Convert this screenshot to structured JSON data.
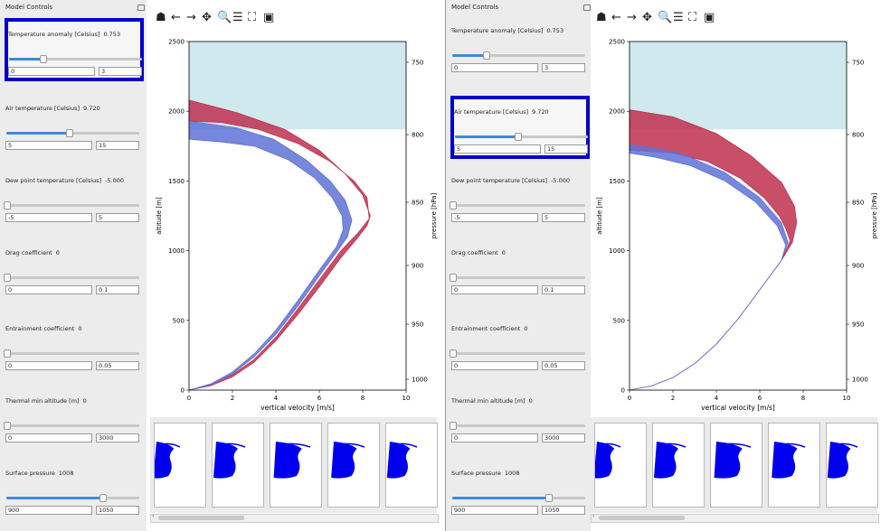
{
  "panes": [
    {
      "title": "Model Controls",
      "controls": [
        {
          "label": "Temperature anomaly [Celsius]",
          "value": "0.753",
          "min": "0",
          "max": "3",
          "frac": 0.251
        },
        {
          "label": "Air temperature [Celsius]",
          "value": "9.720",
          "min": "5",
          "max": "15",
          "frac": 0.472
        },
        {
          "label": "Dew point temperature [Celsius]",
          "value": "-5.000",
          "min": "-5",
          "max": "5",
          "frac": 0.0
        },
        {
          "label": "Drag coefficient",
          "value": "0",
          "min": "0",
          "max": "0.1",
          "frac": 0.0
        },
        {
          "label": "Entrainment coefficient",
          "value": "0",
          "min": "0",
          "max": "0.05",
          "frac": 0.0
        },
        {
          "label": "Thermal min altitude [m]",
          "value": "0",
          "min": "0",
          "max": "3000",
          "frac": 0.0
        },
        {
          "label": "Surface pressure",
          "value": "1008",
          "min": "900",
          "max": "1050",
          "frac": 0.72
        }
      ],
      "selected": 0
    },
    {
      "title": "Model Controls",
      "controls": [
        {
          "label": "Temperature anomaly [Celsius]",
          "value": "0.753",
          "min": "0",
          "max": "3",
          "frac": 0.251
        },
        {
          "label": "Air temperature [Celsius]",
          "value": "9.720",
          "min": "5",
          "max": "15",
          "frac": 0.472
        },
        {
          "label": "Dew point temperature [Celsius]",
          "value": "-5.000",
          "min": "-5",
          "max": "5",
          "frac": 0.0
        },
        {
          "label": "Drag coefficient",
          "value": "0",
          "min": "0",
          "max": "0.1",
          "frac": 0.0
        },
        {
          "label": "Entrainment coefficient",
          "value": "0",
          "min": "0",
          "max": "0.05",
          "frac": 0.0
        },
        {
          "label": "Thermal min altitude [m]",
          "value": "0",
          "min": "0",
          "max": "3000",
          "frac": 0.0
        },
        {
          "label": "Surface pressure",
          "value": "1008",
          "min": "900",
          "max": "1050",
          "frac": 0.72
        }
      ],
      "selected": 1
    }
  ],
  "toolbar": [
    {
      "name": "home-icon",
      "glyph": "☗"
    },
    {
      "name": "back-icon",
      "glyph": "←"
    },
    {
      "name": "forward-icon",
      "glyph": "→"
    },
    {
      "name": "pan-icon",
      "glyph": "✥"
    },
    {
      "name": "zoom-icon",
      "glyph": "🔍"
    },
    {
      "name": "configure-subplots-icon",
      "glyph": "☰"
    },
    {
      "name": "edit-axis-icon",
      "glyph": "⛶"
    },
    {
      "name": "save-icon",
      "glyph": "▣"
    }
  ],
  "chart_data": [
    {
      "type": "area",
      "xlabel": "vertical velocity [m/s]",
      "ylabel": "altitude [m]",
      "y2label": "pressure [hPa]",
      "xlim": [
        0,
        10
      ],
      "ylim": [
        0,
        2500
      ],
      "xticks": [
        "0",
        "2",
        "4",
        "6",
        "8",
        "10"
      ],
      "yticks": [
        "0",
        "500",
        "1000",
        "1500",
        "2000",
        "2500"
      ],
      "y2ticks": [
        "750",
        "800",
        "850",
        "900",
        "950",
        "1000"
      ],
      "cloud_base": 1870,
      "colors": {
        "red": "#c0304f",
        "blue": "#5f72d6",
        "sky": "#cfe9ef"
      },
      "series": [
        {
          "color": "red",
          "outer": [
            [
              0,
              0
            ],
            [
              1,
              40
            ],
            [
              2,
              110
            ],
            [
              3,
              220
            ],
            [
              4,
              380
            ],
            [
              5,
              580
            ],
            [
              6,
              790
            ],
            [
              7,
              1000
            ],
            [
              7.8,
              1130
            ],
            [
              8.3,
              1230
            ],
            [
              8.2,
              1380
            ],
            [
              7.6,
              1500
            ],
            [
              6.5,
              1640
            ],
            [
              5,
              1770
            ],
            [
              3.2,
              1870
            ],
            [
              1.5,
              1920
            ],
            [
              0,
              1930
            ]
          ],
          "inner": [
            [
              0,
              0
            ],
            [
              1,
              32
            ],
            [
              2,
              95
            ],
            [
              3,
              200
            ],
            [
              4,
              355
            ],
            [
              5,
              540
            ],
            [
              6,
              740
            ],
            [
              7,
              950
            ],
            [
              7.7,
              1080
            ],
            [
              8.2,
              1180
            ],
            [
              8.35,
              1250
            ],
            [
              8.0,
              1400
            ],
            [
              7.2,
              1550
            ],
            [
              6,
              1720
            ],
            [
              4.4,
              1870
            ],
            [
              2.2,
              1990
            ],
            [
              0,
              2080
            ]
          ]
        },
        {
          "color": "blue",
          "outer": [
            [
              0,
              0
            ],
            [
              1,
              45
            ],
            [
              2,
              130
            ],
            [
              3,
              260
            ],
            [
              4,
              430
            ],
            [
              5,
              640
            ],
            [
              6,
              860
            ],
            [
              6.8,
              1030
            ],
            [
              7.1,
              1150
            ],
            [
              7.05,
              1250
            ],
            [
              6.6,
              1380
            ],
            [
              5.8,
              1520
            ],
            [
              4.6,
              1650
            ],
            [
              3,
              1750
            ],
            [
              1.5,
              1780
            ],
            [
              0,
              1800
            ]
          ],
          "inner": [
            [
              0,
              0
            ],
            [
              1,
              38
            ],
            [
              2,
              115
            ],
            [
              3,
              240
            ],
            [
              4,
              400
            ],
            [
              5,
              600
            ],
            [
              6,
              820
            ],
            [
              6.8,
              990
            ],
            [
              7.3,
              1100
            ],
            [
              7.5,
              1220
            ],
            [
              7.2,
              1360
            ],
            [
              6.5,
              1500
            ],
            [
              5.4,
              1650
            ],
            [
              3.9,
              1800
            ],
            [
              2.2,
              1880
            ],
            [
              0,
              1930
            ]
          ]
        }
      ]
    },
    {
      "type": "area",
      "xlabel": "vertical velocity [m/s]",
      "ylabel": "altitude [m]",
      "y2label": "pressure [hPa]",
      "xlim": [
        0,
        10
      ],
      "ylim": [
        0,
        2500
      ],
      "xticks": [
        "0",
        "2",
        "4",
        "6",
        "8",
        "10"
      ],
      "yticks": [
        "0",
        "500",
        "1000",
        "1500",
        "2000",
        "2500"
      ],
      "y2ticks": [
        "750",
        "800",
        "850",
        "900",
        "950",
        "1000"
      ],
      "cloud_base": 1870,
      "colors": {
        "red": "#c0304f",
        "blue": "#5f72d6",
        "sky": "#cfe9ef"
      },
      "series": [
        {
          "color": "red",
          "outer": [
            [
              0,
              0
            ],
            [
              1,
              30
            ],
            [
              2,
              90
            ],
            [
              3,
              190
            ],
            [
              4,
              330
            ],
            [
              5,
              510
            ],
            [
              6,
              720
            ],
            [
              7,
              930
            ],
            [
              7.4,
              1070
            ],
            [
              7.2,
              1160
            ],
            [
              6.9,
              1250
            ],
            [
              6.2,
              1380
            ],
            [
              5.1,
              1520
            ],
            [
              3.6,
              1640
            ],
            [
              2,
              1700
            ],
            [
              0,
              1720
            ]
          ],
          "inner": [
            [
              0,
              0
            ],
            [
              1,
              30
            ],
            [
              2,
              90
            ],
            [
              3,
              190
            ],
            [
              4,
              330
            ],
            [
              5,
              510
            ],
            [
              6,
              720
            ],
            [
              7,
              930
            ],
            [
              7.5,
              1060
            ],
            [
              7.7,
              1200
            ],
            [
              7.6,
              1320
            ],
            [
              7.0,
              1490
            ],
            [
              5.6,
              1680
            ],
            [
              4.0,
              1840
            ],
            [
              2.0,
              1960
            ],
            [
              0,
              2010
            ]
          ]
        },
        {
          "color": "blue",
          "outer": [
            [
              0,
              0
            ],
            [
              1,
              30
            ],
            [
              2,
              90
            ],
            [
              3,
              190
            ],
            [
              4,
              330
            ],
            [
              5,
              510
            ],
            [
              6,
              720
            ],
            [
              7,
              930
            ],
            [
              7.2,
              1040
            ],
            [
              6.8,
              1180
            ],
            [
              5.8,
              1350
            ],
            [
              4.4,
              1500
            ],
            [
              2.8,
              1610
            ],
            [
              1.2,
              1670
            ],
            [
              0,
              1700
            ]
          ],
          "inner": [
            [
              0,
              0
            ],
            [
              1,
              30
            ],
            [
              2,
              90
            ],
            [
              3,
              190
            ],
            [
              4,
              330
            ],
            [
              5,
              510
            ],
            [
              6,
              720
            ],
            [
              7,
              930
            ],
            [
              7.3,
              1060
            ],
            [
              7.0,
              1200
            ],
            [
              6.0,
              1380
            ],
            [
              4.4,
              1560
            ],
            [
              2.5,
              1690
            ],
            [
              1.0,
              1740
            ],
            [
              0,
              1760
            ]
          ]
        }
      ]
    }
  ]
}
